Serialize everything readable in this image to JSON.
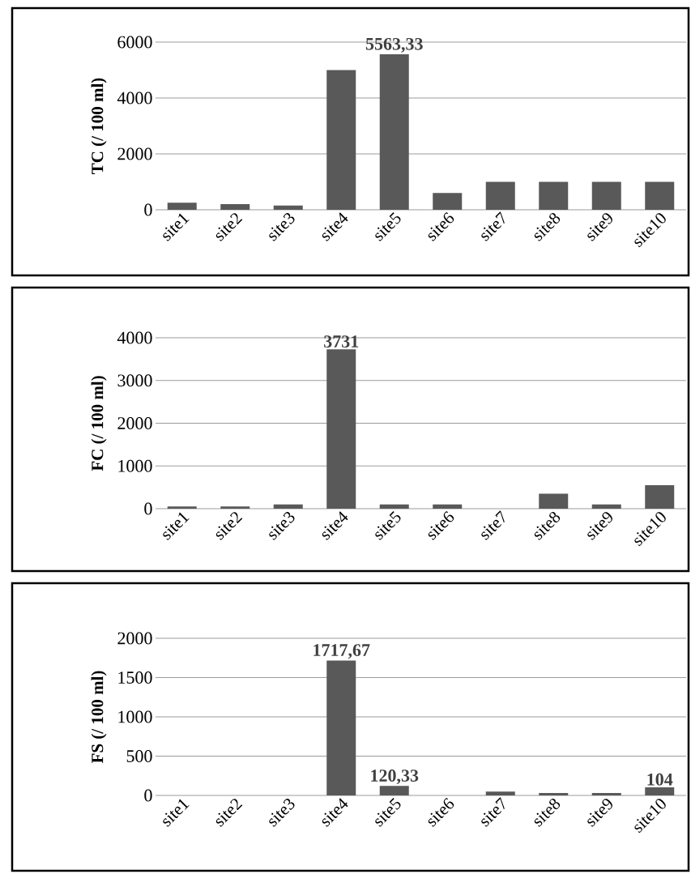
{
  "chart_data": [
    {
      "type": "bar",
      "ylabel": "TC (/ 100 ml)",
      "categories": [
        "site1",
        "site2",
        "site3",
        "site4",
        "site5",
        "site6",
        "site7",
        "site8",
        "site9",
        "site10"
      ],
      "values": [
        250,
        200,
        150,
        5000,
        5563.33,
        600,
        1000,
        1000,
        1000,
        1000
      ],
      "value_labels": [
        null,
        null,
        null,
        null,
        "5563,33",
        null,
        null,
        null,
        null,
        null
      ],
      "color": "#595959",
      "ylim": [
        0,
        6000
      ],
      "yticks": [
        0,
        2000,
        4000,
        6000
      ],
      "grid": "y"
    },
    {
      "type": "bar",
      "ylabel": "FC (/ 100 ml)",
      "categories": [
        "site1",
        "site2",
        "site3",
        "site4",
        "site5",
        "site6",
        "site7",
        "site8",
        "site9",
        "site10"
      ],
      "values": [
        50,
        50,
        100,
        3731,
        100,
        100,
        0,
        350,
        100,
        550
      ],
      "value_labels": [
        null,
        null,
        null,
        "3731",
        null,
        null,
        null,
        null,
        null,
        null
      ],
      "color": "#595959",
      "ylim": [
        0,
        4000
      ],
      "yticks": [
        0,
        1000,
        2000,
        3000,
        4000
      ],
      "grid": "y"
    },
    {
      "type": "bar",
      "ylabel": "FS (/ 100 ml)",
      "categories": [
        "site1",
        "site2",
        "site3",
        "site4",
        "site5",
        "site6",
        "site7",
        "site8",
        "site9",
        "site10"
      ],
      "values": [
        0,
        0,
        0,
        1717.67,
        120.33,
        0,
        50,
        30,
        30,
        104
      ],
      "value_labels": [
        null,
        null,
        null,
        "1717,67",
        "120,33",
        null,
        null,
        null,
        null,
        "104"
      ],
      "color": "#595959",
      "ylim": [
        0,
        2000
      ],
      "yticks": [
        0,
        500,
        1000,
        1500,
        2000
      ],
      "grid": "y"
    }
  ]
}
